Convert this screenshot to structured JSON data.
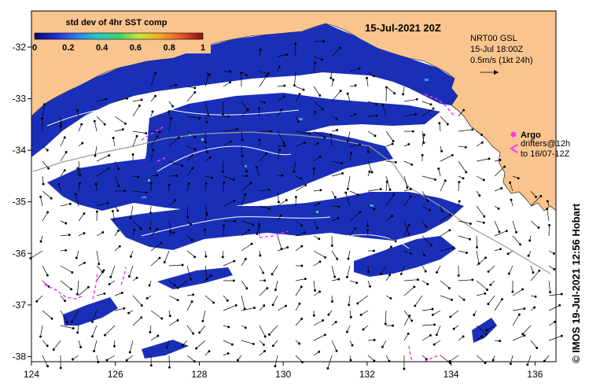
{
  "map": {
    "date_title": "15-Jul-2021 20Z",
    "colorbar": {
      "title": "std dev of 4hr SST comp",
      "ticks": [
        "0",
        "0.2",
        "0.4",
        "0.6",
        "0.8",
        "1"
      ],
      "colors": [
        "#0a0a6e",
        "#1e2ad8",
        "#2f7de8",
        "#26c8c8",
        "#3bd26a",
        "#c8e63c",
        "#f5a623",
        "#e8502a",
        "#8c0f0f"
      ]
    },
    "current_legend": {
      "line1": "NRT00 GSL",
      "line2": "15-Jul 18:00Z",
      "line3": "0.5m/s (1kt 24h)"
    },
    "drifter_legend": {
      "argo_label": "Argo",
      "drifter_line1": "drifters@12h",
      "drifter_line2": "to 16/07-12Z"
    },
    "x_axis": {
      "ticks": [
        "124",
        "126",
        "128",
        "130",
        "132",
        "134",
        "136"
      ],
      "range": [
        124,
        136.5
      ]
    },
    "y_axis": {
      "ticks": [
        "-32",
        "-33",
        "-34",
        "-35",
        "-36",
        "-37",
        "-38"
      ],
      "range": [
        -38.1,
        -31.3
      ]
    },
    "credit": "© IMOS 19-Jul-2021 12:56 Hobart",
    "colors": {
      "land": "#f9c48e",
      "ocean": "#ffffff",
      "sst_low": "#1a2fb8",
      "sst_dark": "#0c1a7a",
      "drifter": "#ff33ff",
      "contour": "#ffffff",
      "bathymetry": "#9a9a9a"
    }
  }
}
